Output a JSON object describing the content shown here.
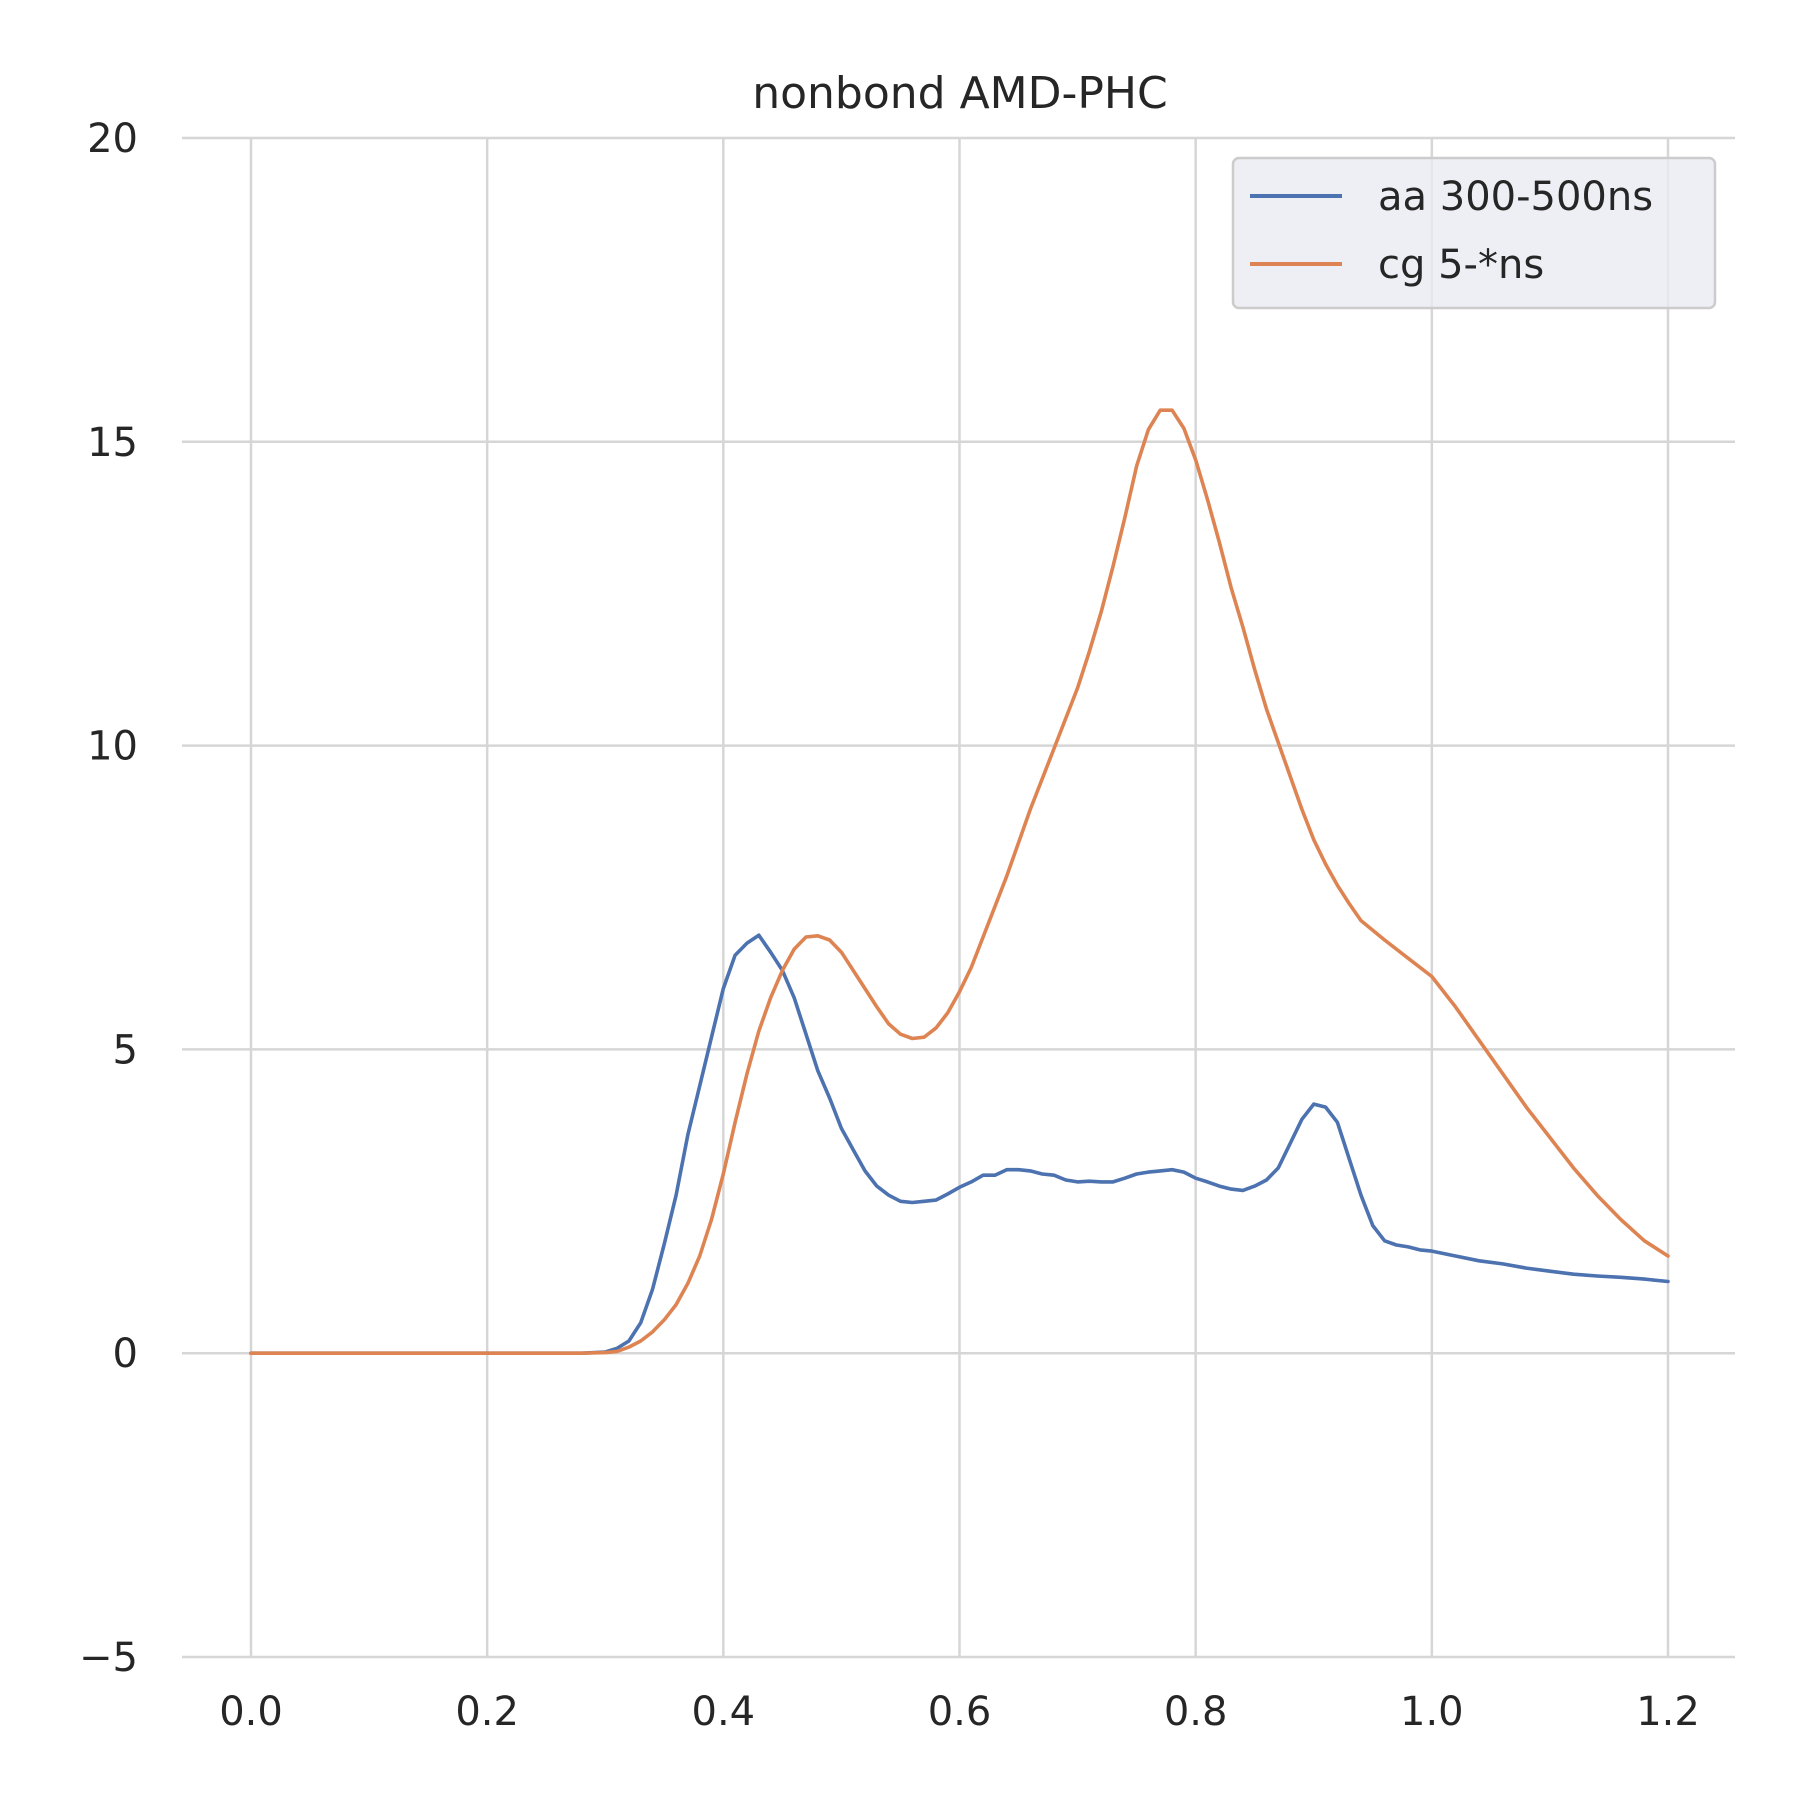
{
  "chart_data": {
    "type": "line",
    "title": "nonbond AMD-PHC",
    "xlabel": "",
    "ylabel": "",
    "xlim": [
      0.0,
      1.2
    ],
    "ylim": [
      -5,
      20
    ],
    "xticks": [
      "0.0",
      "0.2",
      "0.4",
      "0.6",
      "0.8",
      "1.0",
      "1.2"
    ],
    "yticks": [
      "−5",
      "0",
      "5",
      "10",
      "15",
      "20"
    ],
    "grid": true,
    "legend_position": "top-right",
    "series": [
      {
        "name": "aa 300-500ns",
        "color": "#4c72b0",
        "x": [
          0.0,
          0.1,
          0.2,
          0.28,
          0.3,
          0.31,
          0.32,
          0.33,
          0.34,
          0.35,
          0.36,
          0.37,
          0.38,
          0.39,
          0.4,
          0.41,
          0.42,
          0.43,
          0.44,
          0.45,
          0.46,
          0.47,
          0.48,
          0.49,
          0.5,
          0.51,
          0.52,
          0.53,
          0.54,
          0.55,
          0.56,
          0.57,
          0.58,
          0.59,
          0.6,
          0.61,
          0.62,
          0.63,
          0.64,
          0.65,
          0.66,
          0.67,
          0.68,
          0.69,
          0.7,
          0.71,
          0.72,
          0.73,
          0.74,
          0.75,
          0.76,
          0.77,
          0.78,
          0.79,
          0.8,
          0.81,
          0.82,
          0.83,
          0.84,
          0.85,
          0.86,
          0.87,
          0.88,
          0.89,
          0.9,
          0.91,
          0.92,
          0.93,
          0.94,
          0.95,
          0.96,
          0.97,
          0.98,
          0.99,
          1.0,
          1.02,
          1.04,
          1.06,
          1.08,
          1.1,
          1.12,
          1.14,
          1.16,
          1.18,
          1.2
        ],
        "y": [
          0.0,
          0.0,
          0.0,
          0.0,
          0.02,
          0.08,
          0.2,
          0.5,
          1.05,
          1.8,
          2.6,
          3.6,
          4.4,
          5.2,
          6.0,
          6.55,
          6.75,
          6.88,
          6.6,
          6.3,
          5.85,
          5.25,
          4.65,
          4.2,
          3.7,
          3.35,
          3.0,
          2.75,
          2.6,
          2.5,
          2.48,
          2.5,
          2.52,
          2.62,
          2.73,
          2.82,
          2.93,
          2.93,
          3.02,
          3.02,
          3.0,
          2.95,
          2.93,
          2.85,
          2.82,
          2.83,
          2.82,
          2.82,
          2.88,
          2.95,
          2.98,
          3.0,
          3.02,
          2.98,
          2.88,
          2.82,
          2.75,
          2.7,
          2.68,
          2.75,
          2.85,
          3.05,
          3.45,
          3.85,
          4.1,
          4.05,
          3.8,
          3.2,
          2.6,
          2.1,
          1.85,
          1.78,
          1.75,
          1.7,
          1.68,
          1.6,
          1.52,
          1.47,
          1.4,
          1.35,
          1.3,
          1.27,
          1.25,
          1.22,
          1.18
        ]
      },
      {
        "name": "cg 5-*ns",
        "color": "#dd8452",
        "x": [
          0.0,
          0.1,
          0.2,
          0.28,
          0.3,
          0.31,
          0.32,
          0.33,
          0.34,
          0.35,
          0.36,
          0.37,
          0.38,
          0.39,
          0.4,
          0.41,
          0.42,
          0.43,
          0.44,
          0.45,
          0.46,
          0.47,
          0.48,
          0.49,
          0.5,
          0.51,
          0.52,
          0.53,
          0.54,
          0.55,
          0.56,
          0.57,
          0.58,
          0.59,
          0.6,
          0.61,
          0.62,
          0.64,
          0.66,
          0.68,
          0.7,
          0.71,
          0.72,
          0.73,
          0.74,
          0.75,
          0.76,
          0.77,
          0.78,
          0.79,
          0.8,
          0.81,
          0.82,
          0.83,
          0.84,
          0.85,
          0.86,
          0.87,
          0.88,
          0.89,
          0.9,
          0.91,
          0.92,
          0.93,
          0.94,
          0.96,
          0.98,
          1.0,
          1.02,
          1.04,
          1.06,
          1.08,
          1.1,
          1.12,
          1.14,
          1.16,
          1.18,
          1.2
        ],
        "y": [
          0.0,
          0.0,
          0.0,
          0.0,
          0.01,
          0.03,
          0.1,
          0.2,
          0.35,
          0.55,
          0.8,
          1.15,
          1.6,
          2.2,
          2.95,
          3.8,
          4.6,
          5.3,
          5.85,
          6.3,
          6.65,
          6.85,
          6.87,
          6.8,
          6.6,
          6.3,
          6.0,
          5.7,
          5.42,
          5.25,
          5.18,
          5.2,
          5.35,
          5.6,
          5.95,
          6.35,
          6.85,
          7.85,
          8.95,
          9.95,
          10.95,
          11.55,
          12.2,
          12.95,
          13.75,
          14.6,
          15.2,
          15.52,
          15.52,
          15.22,
          14.7,
          14.05,
          13.35,
          12.6,
          11.95,
          11.25,
          10.6,
          10.05,
          9.5,
          8.95,
          8.45,
          8.05,
          7.7,
          7.4,
          7.12,
          6.8,
          6.5,
          6.2,
          5.7,
          5.15,
          4.6,
          4.05,
          3.55,
          3.05,
          2.6,
          2.2,
          1.85,
          1.6
        ]
      }
    ]
  }
}
